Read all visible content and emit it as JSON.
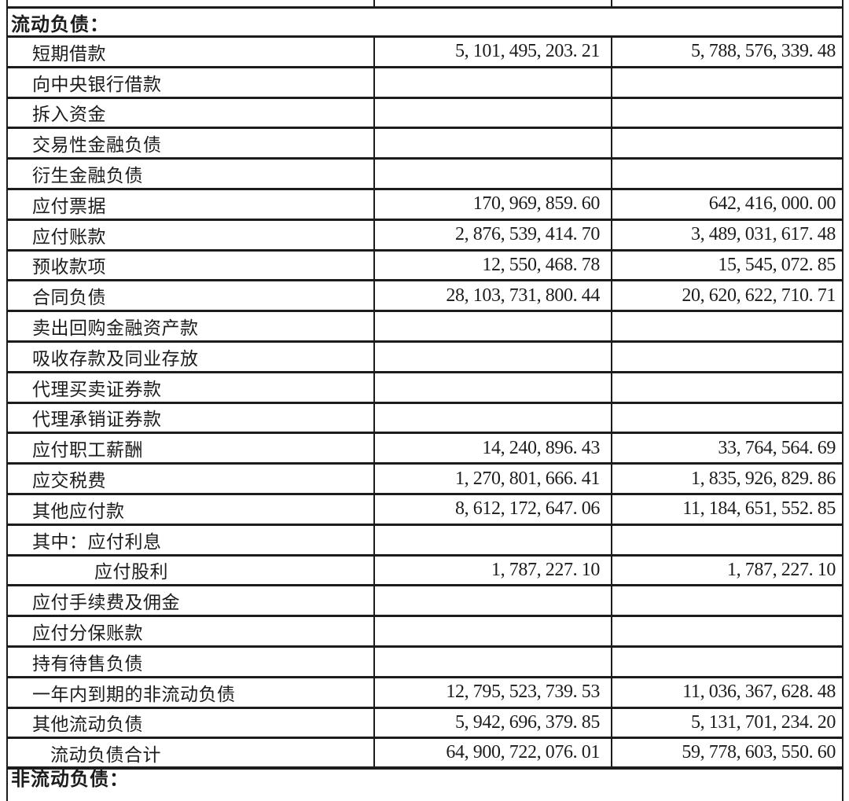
{
  "colors": {
    "ink": "#1c1c1c",
    "background": "#ffffff"
  },
  "table": {
    "section_header": "流动负债：",
    "next_section_header": "非流动负债：",
    "clipped_top_row": {
      "col1": "",
      "col2": "",
      "col3": ""
    },
    "rows": [
      {
        "label": "短期借款",
        "col1": "5, 101, 495, 203. 21",
        "col2": "5, 788, 576, 339. 48"
      },
      {
        "label": "向中央银行借款",
        "col1": "",
        "col2": ""
      },
      {
        "label": "拆入资金",
        "col1": "",
        "col2": ""
      },
      {
        "label": "交易性金融负债",
        "col1": "",
        "col2": ""
      },
      {
        "label": "衍生金融负债",
        "col1": "",
        "col2": ""
      },
      {
        "label": "应付票据",
        "col1": "170, 969, 859. 60",
        "col2": "642, 416, 000. 00"
      },
      {
        "label": "应付账款",
        "col1": "2, 876, 539, 414. 70",
        "col2": "3, 489, 031, 617. 48"
      },
      {
        "label": "预收款项",
        "col1": "12, 550, 468. 78",
        "col2": "15, 545, 072. 85"
      },
      {
        "label": "合同负债",
        "col1": "28, 103, 731, 800. 44",
        "col2": "20, 620, 622, 710. 71"
      },
      {
        "label": "卖出回购金融资产款",
        "col1": "",
        "col2": ""
      },
      {
        "label": "吸收存款及同业存放",
        "col1": "",
        "col2": ""
      },
      {
        "label": "代理买卖证券款",
        "col1": "",
        "col2": ""
      },
      {
        "label": "代理承销证券款",
        "col1": "",
        "col2": ""
      },
      {
        "label": "应付职工薪酬",
        "col1": "14, 240, 896. 43",
        "col2": "33, 764, 564. 69"
      },
      {
        "label": "应交税费",
        "col1": "1, 270, 801, 666. 41",
        "col2": "1, 835, 926, 829. 86"
      },
      {
        "label": "其他应付款",
        "col1": "8, 612, 172, 647. 06",
        "col2": "11, 184, 651, 552. 85"
      },
      {
        "label": "其中：应付利息",
        "col1": "",
        "col2": ""
      },
      {
        "label": "应付股利",
        "col1": "1, 787, 227. 10",
        "col2": "1, 787, 227. 10"
      },
      {
        "label": "应付手续费及佣金",
        "col1": "",
        "col2": ""
      },
      {
        "label": "应付分保账款",
        "col1": "",
        "col2": ""
      },
      {
        "label": "持有待售负债",
        "col1": "",
        "col2": ""
      },
      {
        "label": "一年内到期的非流动负债",
        "col1": "12, 795, 523, 739. 53",
        "col2": "11, 036, 367, 628. 48"
      },
      {
        "label": "其他流动负债",
        "col1": "5, 942, 696, 379. 85",
        "col2": "5, 131, 701, 234. 20"
      },
      {
        "label": "流动负债合计",
        "col1": "64, 900, 722, 076. 01",
        "col2": "59, 778, 603, 550. 60"
      }
    ]
  }
}
